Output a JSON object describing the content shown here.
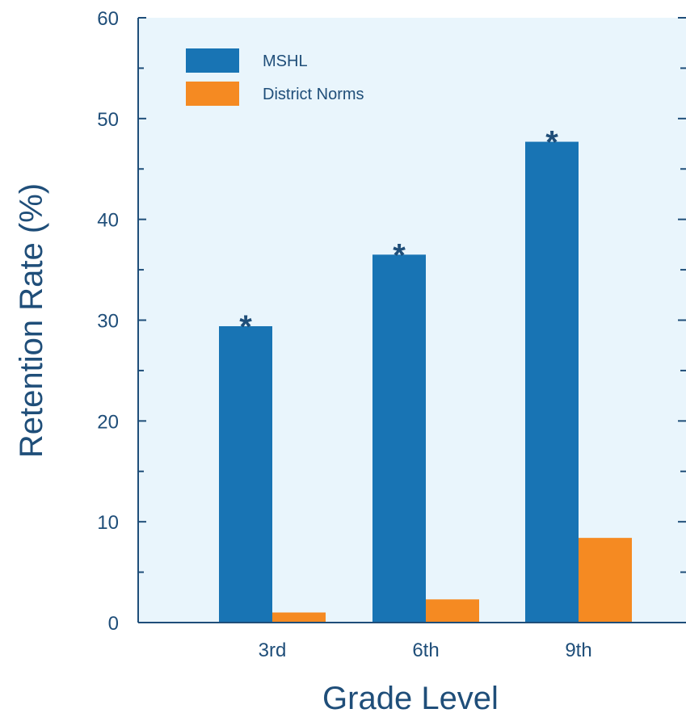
{
  "chart_data": {
    "type": "bar",
    "categories": [
      "3rd",
      "6th",
      "9th"
    ],
    "series": [
      {
        "name": "MSHL",
        "values": [
          29.4,
          36.5,
          47.7
        ],
        "color": "#1874b4"
      },
      {
        "name": "District Norms",
        "values": [
          1.0,
          2.3,
          8.4
        ],
        "color": "#f58a22"
      }
    ],
    "xlabel": "Grade Level",
    "ylabel": "Retention Rate (%)",
    "ylim": [
      0,
      60
    ],
    "yticks": [
      0,
      10,
      20,
      30,
      40,
      50,
      60
    ],
    "grid": false,
    "legend_position": "top-left",
    "annotations": [
      "*",
      "*",
      "*"
    ],
    "background_color": "#e9f5fc",
    "axis_color": "#1f4e79"
  }
}
